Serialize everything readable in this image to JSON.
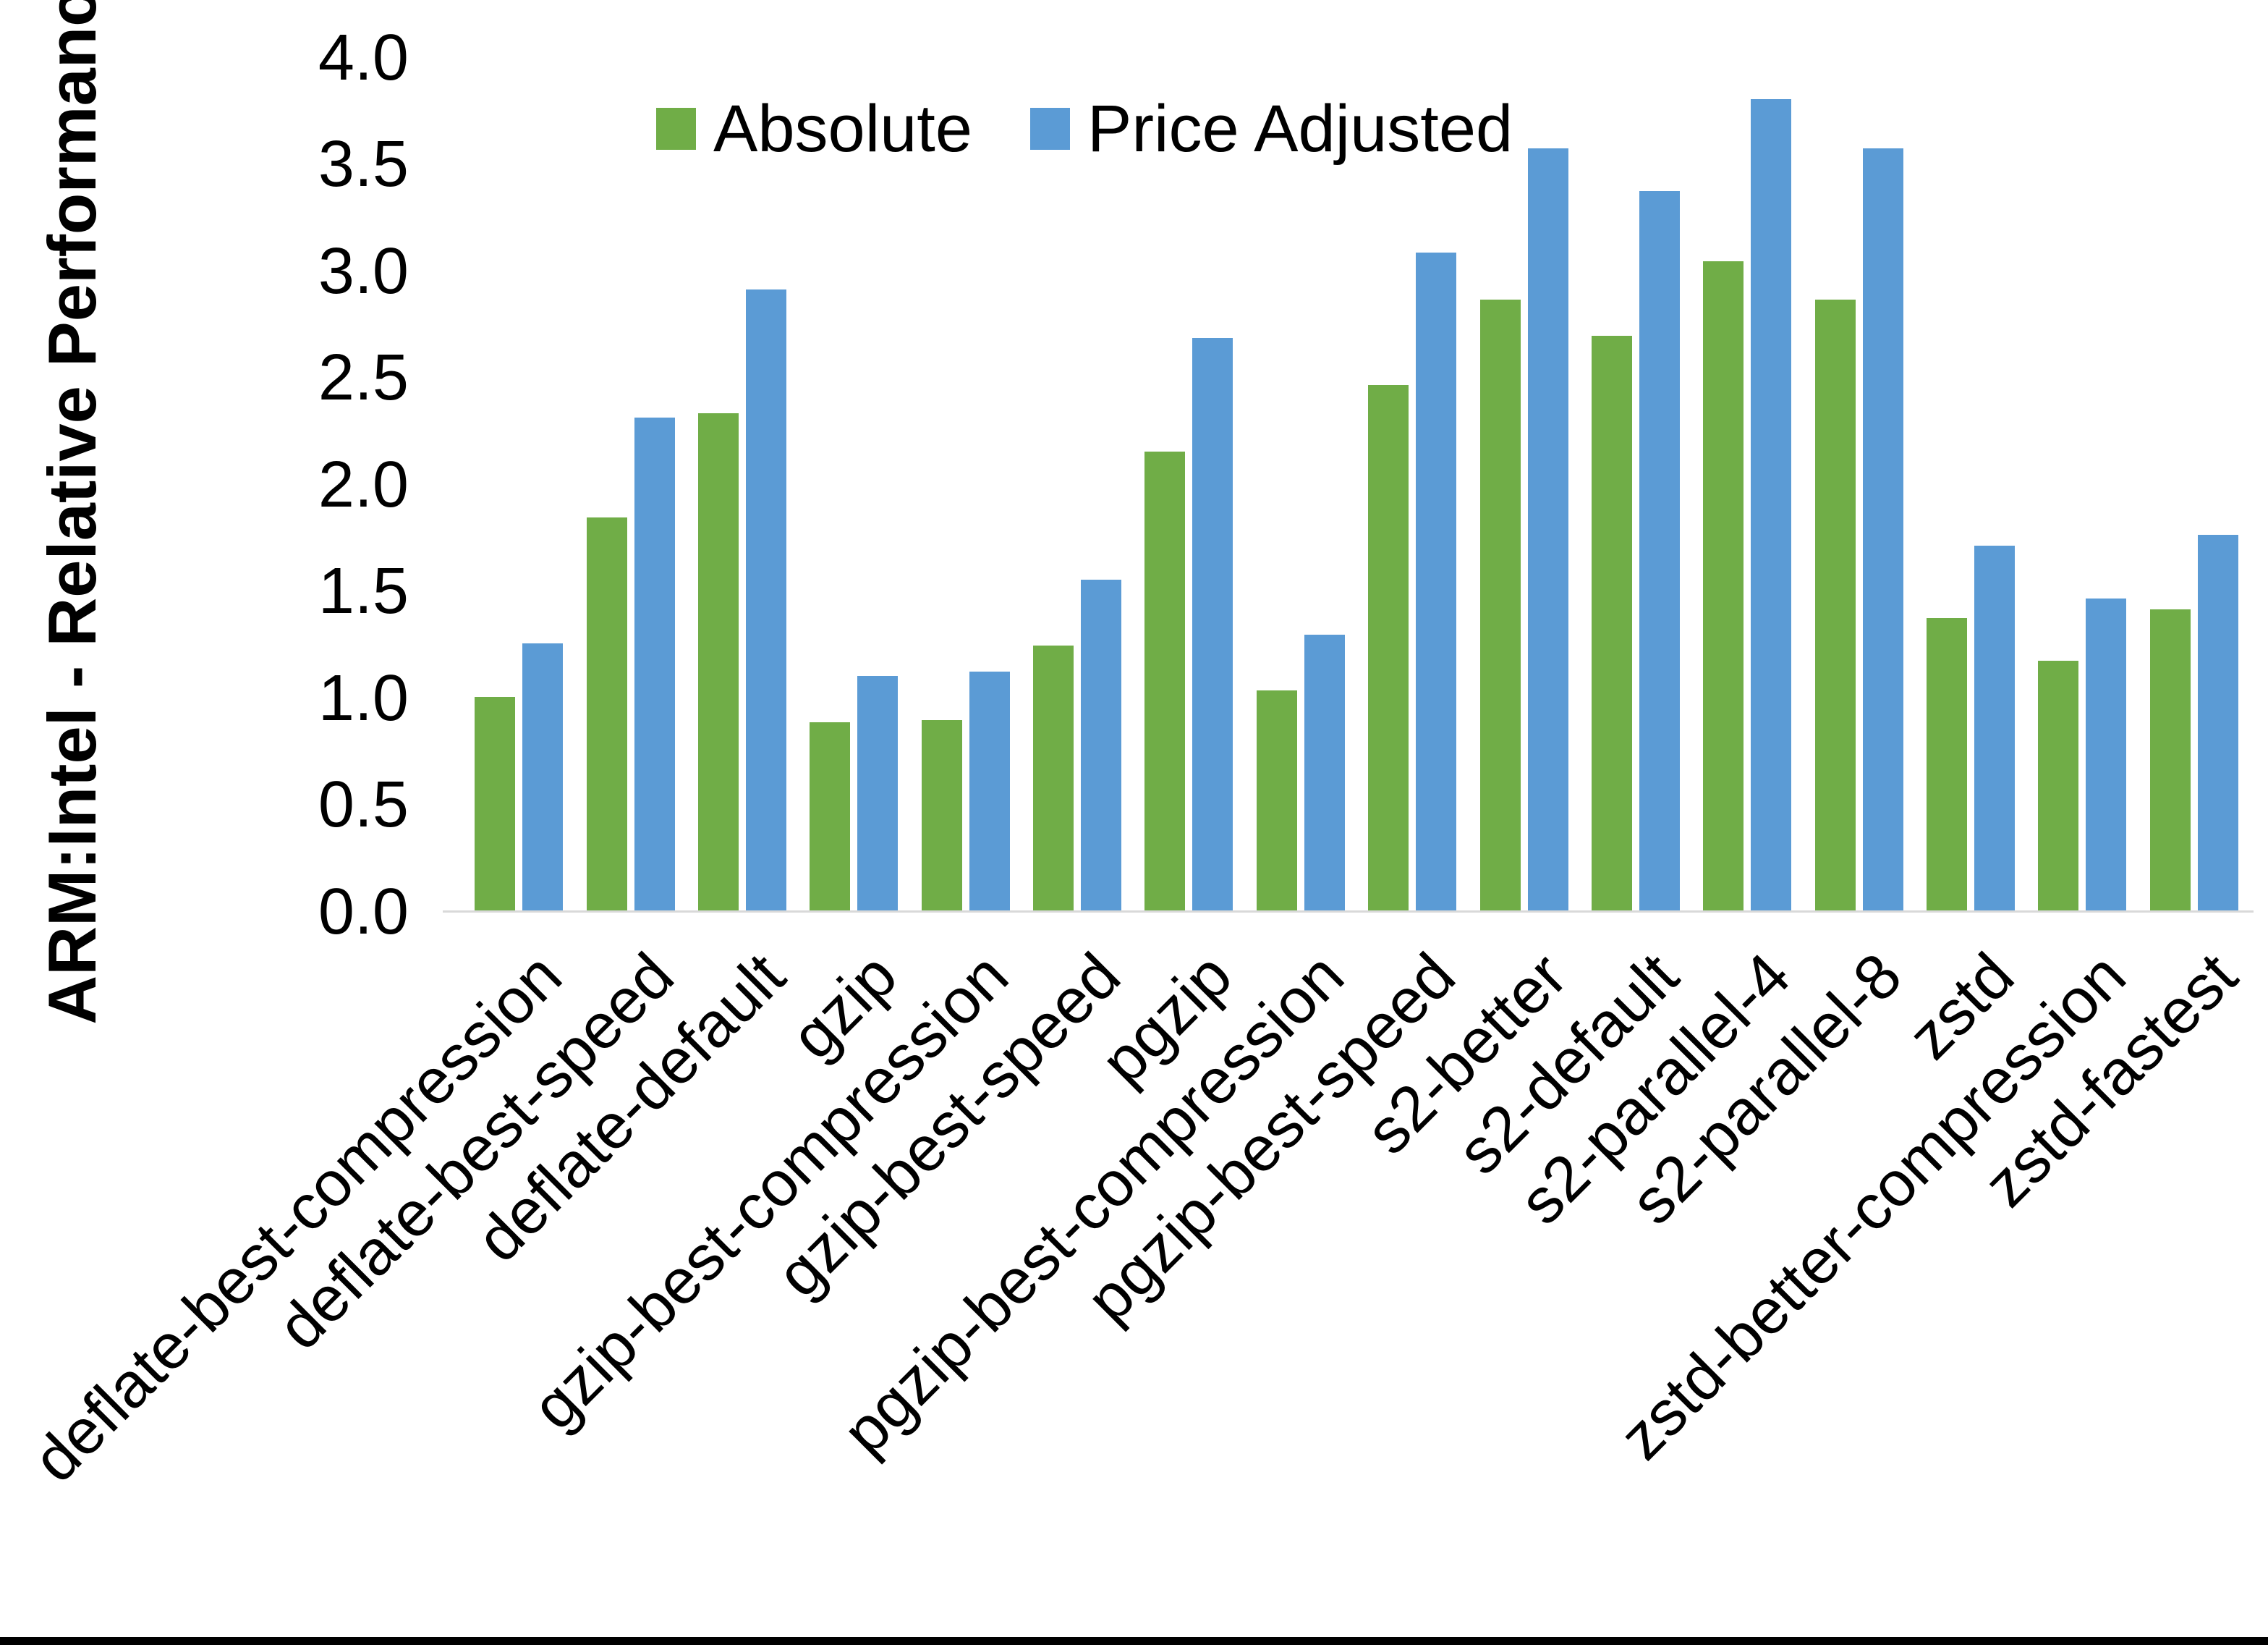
{
  "chart_data": {
    "type": "bar",
    "title": "",
    "xlabel": "",
    "ylabel": "ARM:Intel - Relative Performance",
    "ylim": [
      0.0,
      4.0
    ],
    "y_tick_labels": [
      "0.0",
      "0.5",
      "1.0",
      "1.5",
      "2.0",
      "2.5",
      "3.0",
      "3.5",
      "4.0"
    ],
    "grid": false,
    "legend_position": "top-center",
    "categories": [
      "deflate-best-compression",
      "deflate-best-speed",
      "deflate-default",
      "gzip",
      "gzip-best-compression",
      "gzip-best-speed",
      "pgzip",
      "pgzip-best-compression",
      "pgzip-best-speed",
      "s2-better",
      "s2-default",
      "s2-parallel-4",
      "s2-parallel-8",
      "zstd",
      "zstd-better-compression",
      "zstd-fastest"
    ],
    "series": [
      {
        "name": "Absolute",
        "color": "#70AD47",
        "values": [
          1.0,
          1.84,
          2.33,
          0.88,
          0.89,
          1.24,
          2.15,
          1.03,
          2.46,
          2.86,
          2.69,
          3.04,
          2.86,
          1.37,
          1.17,
          1.41
        ]
      },
      {
        "name": "Price Adjusted",
        "color": "#5B9BD5",
        "values": [
          1.25,
          2.31,
          2.91,
          1.1,
          1.12,
          1.55,
          2.68,
          1.29,
          3.08,
          3.57,
          3.37,
          3.8,
          3.57,
          1.71,
          1.46,
          1.76
        ]
      }
    ]
  },
  "colors": {
    "axis_line": "#D9D9D9",
    "text": "#000000",
    "background": "#FFFFFF",
    "bottom_border": "#000000"
  }
}
